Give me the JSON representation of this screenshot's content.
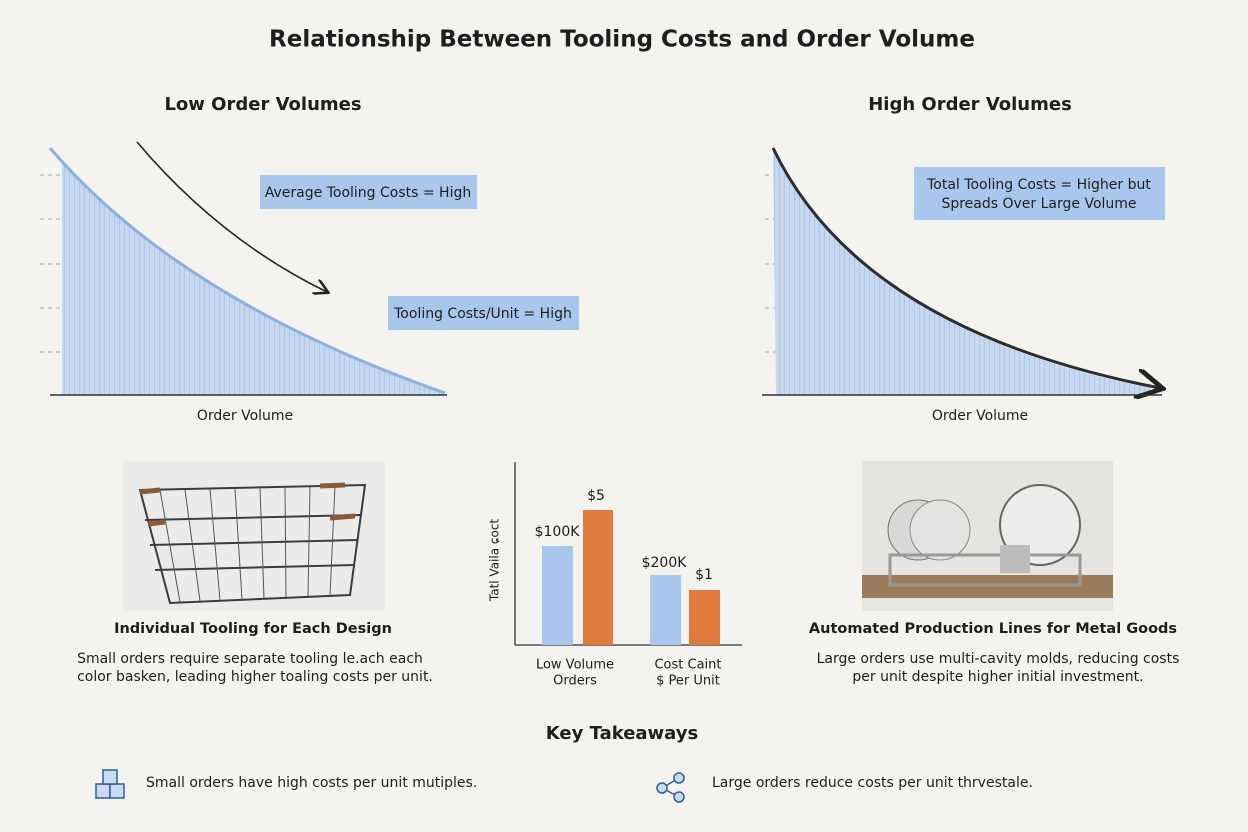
{
  "header": {
    "title": "Relationship Between Tooling Costs and Order Volume"
  },
  "panels": [
    {
      "title": "Low Order Volumes",
      "boxes": [
        [
          "Average Tooling Costs = High"
        ],
        [
          "Tooling Costs/Unit = High"
        ]
      ],
      "axis_label": "Order Volume"
    },
    {
      "title": "High Order Volumes",
      "boxes": [
        [
          "Total Tooling Costs = Higher but",
          "Spreads Over Large Volume"
        ]
      ],
      "axis_label": "Order Volume"
    }
  ],
  "cards": [
    {
      "caption": "Individual Tooling for Each Design",
      "text": [
        "Small orders require separate tooling le.ach each",
        "color basken, leading higher toaling costs per unit."
      ]
    },
    {
      "caption": "Automated Production Lines for Metal Goods",
      "text": [
        "Large orders use multi-cavity molds, reducing costs",
        "per unit despite higher initial investment."
      ]
    }
  ],
  "bar_chart": {
    "y_label": "Tatl Vaila ɕoct",
    "bar_labels": [
      "$100K",
      "$5",
      "$200K",
      "$1"
    ],
    "categories": [
      [
        "Low Volume",
        "Orders"
      ],
      [
        "Cost Caint",
        "$ Per Unit"
      ]
    ]
  },
  "takeaways": {
    "title": "Key Takeaways",
    "items": [
      "Small orders have high costs per unit mutiples.",
      "Large orders reduce costs per unit thrvestale."
    ]
  }
}
